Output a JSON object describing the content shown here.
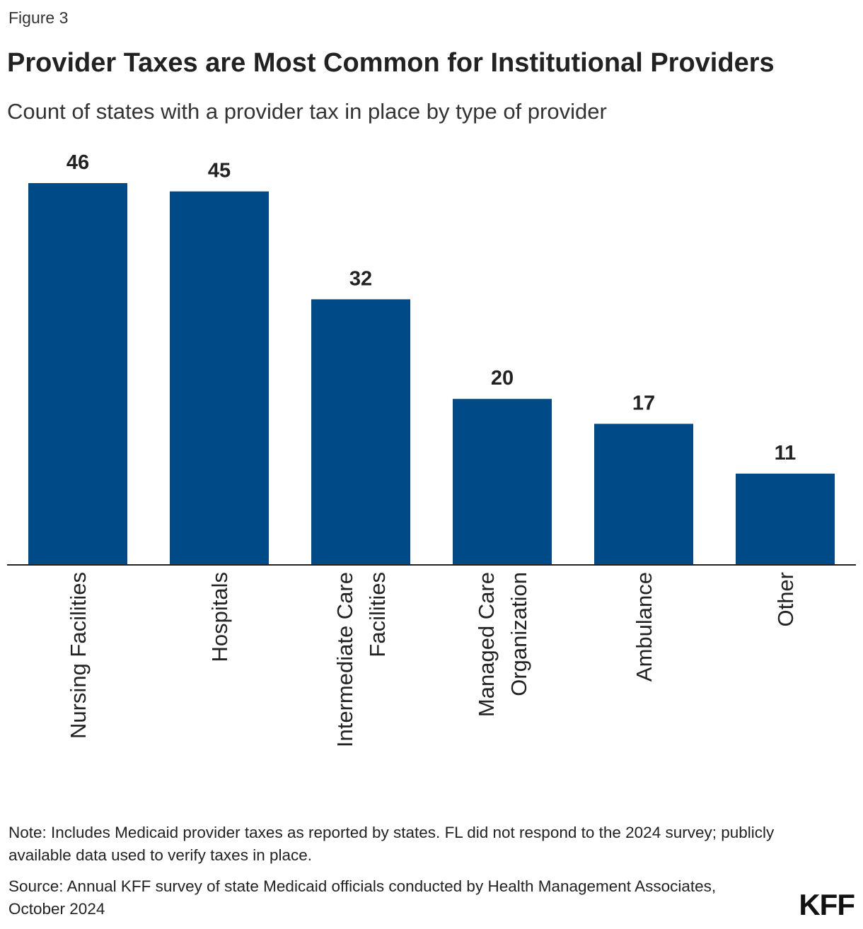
{
  "figure_label": "Figure 3",
  "title": "Provider Taxes are Most Common for Institutional Providers",
  "subtitle": "Count of states with a provider tax in place by type of provider",
  "note": "Note: Includes Medicaid provider taxes as reported by states. FL did not respond to the 2024 survey; publicly available data used to verify taxes in place.",
  "source": "Source: Annual KFF survey of state Medicaid officials conducted by Health Management Associates, October 2024",
  "logo": "KFF",
  "colors": {
    "bar": "#004a87",
    "axis": "#222222",
    "text": "#222222"
  },
  "chart_data": {
    "type": "bar",
    "title": "Provider Taxes are Most Common for Institutional Providers",
    "subtitle": "Count of states with a provider tax in place by type of provider",
    "categories": [
      "Nursing Facilities",
      "Hospitals",
      "Intermediate Care Facilities",
      "Managed Care Organization",
      "Ambulance",
      "Other"
    ],
    "category_label_lines": [
      [
        "Nursing Facilities"
      ],
      [
        "Hospitals"
      ],
      [
        "Intermediate Care",
        "Facilities"
      ],
      [
        "Managed Care",
        "Organization"
      ],
      [
        "Ambulance"
      ],
      [
        "Other"
      ]
    ],
    "values": [
      46,
      45,
      32,
      20,
      17,
      11
    ],
    "xlabel": "",
    "ylabel": "",
    "ylim": [
      0,
      46
    ],
    "grid": false,
    "data_labels": true
  }
}
